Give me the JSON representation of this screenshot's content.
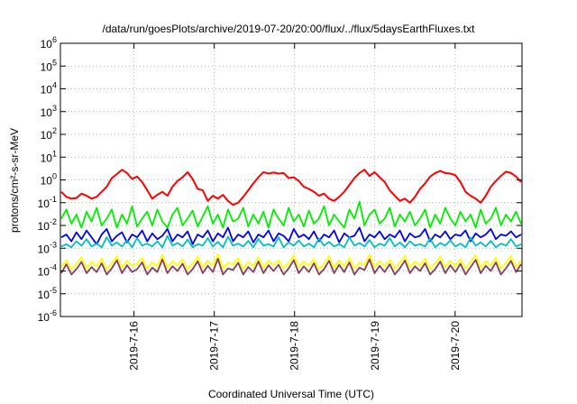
{
  "chart_data": {
    "type": "line",
    "title": "/data/run/goesPlots/archive/2019-07-20/20:00/flux/../flux/5daysEarthFluxes.txt",
    "xlabel": "Coordinated Universal Time (UTC)",
    "ylabel": "protons/cm²-s-sr-MeV",
    "x_unit": "days",
    "x_range": [
      "2019-07-15T02:00",
      "2019-07-20T20:00"
    ],
    "x_ticks": [
      "2019-7-16",
      "2019-7-17",
      "2019-7-18",
      "2019-7-19",
      "2019-7-20"
    ],
    "yscale": "log",
    "ylim": [
      1e-06,
      1000000.0
    ],
    "y_ticks": [
      {
        "base": "10",
        "exp": "6"
      },
      {
        "base": "10",
        "exp": "5"
      },
      {
        "base": "10",
        "exp": "4"
      },
      {
        "base": "10",
        "exp": "3"
      },
      {
        "base": "10",
        "exp": "2"
      },
      {
        "base": "10",
        "exp": "1"
      },
      {
        "base": "10",
        "exp": "0"
      },
      {
        "base": "10",
        "exp": "-1"
      },
      {
        "base": "10",
        "exp": "-2"
      },
      {
        "base": "10",
        "exp": "-3"
      },
      {
        "base": "10",
        "exp": "-4"
      },
      {
        "base": "10",
        "exp": "-5"
      },
      {
        "base": "10",
        "exp": "-6"
      }
    ],
    "grid": true,
    "series": [
      {
        "color": "#ff0000",
        "values": [
          0.3,
          0.18,
          0.15,
          0.16,
          0.25,
          0.2,
          0.15,
          0.18,
          0.3,
          0.5,
          1.2,
          1.8,
          2.8,
          2.0,
          1.1,
          1.4,
          0.8,
          0.35,
          0.15,
          0.22,
          0.3,
          0.2,
          0.5,
          0.9,
          1.3,
          2.2,
          1.1,
          0.4,
          0.35,
          0.12,
          0.2,
          0.15,
          0.22,
          0.12,
          0.08,
          0.1,
          0.18,
          0.35,
          0.7,
          1.3,
          2.2,
          1.9,
          2.1,
          1.9,
          2.0,
          1.2,
          1.3,
          0.9,
          0.5,
          0.4,
          0.3,
          0.2,
          0.25,
          0.15,
          0.12,
          0.18,
          0.3,
          0.6,
          1.2,
          2.0,
          2.8,
          1.5,
          2.2,
          1.3,
          0.8,
          0.35,
          0.2,
          0.12,
          0.15,
          0.1,
          0.18,
          0.4,
          0.7,
          1.4,
          2.0,
          2.5,
          2.0,
          1.9,
          1.6,
          0.8,
          0.3,
          0.2,
          0.15,
          0.1,
          0.2,
          0.5,
          0.9,
          1.5,
          2.3,
          2.0,
          1.4,
          0.8
        ]
      },
      {
        "color": "#00ee00",
        "values": [
          0.02,
          0.05,
          0.012,
          0.03,
          0.008,
          0.04,
          0.015,
          0.06,
          0.01,
          0.02,
          0.05,
          0.008,
          0.03,
          0.012,
          0.07,
          0.009,
          0.02,
          0.04,
          0.01,
          0.05,
          0.015,
          0.008,
          0.03,
          0.06,
          0.01,
          0.02,
          0.045,
          0.009,
          0.025,
          0.07,
          0.012,
          0.03,
          0.008,
          0.05,
          0.015,
          0.02,
          0.06,
          0.009,
          0.03,
          0.012,
          0.04,
          0.008,
          0.05,
          0.02,
          0.01,
          0.06,
          0.015,
          0.03,
          0.009,
          0.045,
          0.012,
          0.02,
          0.07,
          0.01,
          0.03,
          0.015,
          0.008,
          0.05,
          0.02,
          0.11,
          0.01,
          0.03,
          0.05,
          0.012,
          0.02,
          0.06,
          0.009,
          0.03,
          0.015,
          0.04,
          0.01,
          0.02,
          0.05,
          0.008,
          0.03,
          0.012,
          0.06,
          0.02,
          0.01,
          0.04,
          0.015,
          0.03,
          0.008,
          0.05,
          0.012,
          0.02,
          0.06,
          0.01,
          0.03,
          0.015,
          0.04,
          0.012
        ]
      },
      {
        "color": "#0000ee",
        "values": [
          0.003,
          0.004,
          0.002,
          0.005,
          0.0025,
          0.006,
          0.003,
          0.0015,
          0.004,
          0.007,
          0.002,
          0.0035,
          0.005,
          0.0018,
          0.004,
          0.003,
          0.006,
          0.002,
          0.0045,
          0.0025,
          0.0035,
          0.007,
          0.002,
          0.004,
          0.003,
          0.0055,
          0.0015,
          0.004,
          0.003,
          0.006,
          0.002,
          0.0045,
          0.003,
          0.008,
          0.002,
          0.004,
          0.003,
          0.0055,
          0.0018,
          0.004,
          0.003,
          0.006,
          0.002,
          0.0045,
          0.0035,
          0.002,
          0.007,
          0.003,
          0.004,
          0.0025,
          0.0055,
          0.002,
          0.004,
          0.003,
          0.006,
          0.0018,
          0.0045,
          0.003,
          0.0035,
          0.008,
          0.002,
          0.004,
          0.003,
          0.0055,
          0.0025,
          0.004,
          0.003,
          0.006,
          0.002,
          0.0045,
          0.003,
          0.0035,
          0.007,
          0.002,
          0.004,
          0.003,
          0.0055,
          0.0025,
          0.004,
          0.0035,
          0.006,
          0.002,
          0.0045,
          0.003,
          0.004,
          0.007,
          0.0025,
          0.004,
          0.0035,
          0.0055,
          0.003,
          0.004
        ]
      },
      {
        "color": "#00c0c0",
        "values": [
          0.0012,
          0.0015,
          0.0011,
          0.002,
          0.0013,
          0.0025,
          0.0012,
          0.0016,
          0.0011,
          0.003,
          0.0013,
          0.0018,
          0.0012,
          0.0022,
          0.0011,
          0.0028,
          0.0013,
          0.0016,
          0.0012,
          0.002,
          0.0011,
          0.0035,
          0.0013,
          0.0017,
          0.0012,
          0.0024,
          0.0011,
          0.0015,
          0.0013,
          0.0028,
          0.0012,
          0.0019,
          0.0011,
          0.0032,
          0.0013,
          0.0016,
          0.0012,
          0.0021,
          0.0011,
          0.0026,
          0.0013,
          0.0015,
          0.0012,
          0.003,
          0.0011,
          0.0018,
          0.0013,
          0.0022,
          0.0012,
          0.0016,
          0.0011,
          0.0027,
          0.0013,
          0.0019,
          0.0012,
          0.0015,
          0.0011,
          0.003,
          0.0013,
          0.0017,
          0.0012,
          0.0023,
          0.0011,
          0.0016,
          0.0013,
          0.0028,
          0.0012,
          0.0018,
          0.0011,
          0.002,
          0.0013,
          0.0015,
          0.0012,
          0.0026,
          0.0011,
          0.0017,
          0.0013,
          0.0022,
          0.0012,
          0.0016,
          0.0011,
          0.0029,
          0.0013,
          0.0018,
          0.0012,
          0.0021,
          0.0011,
          0.0016,
          0.0013,
          0.0025,
          0.0012,
          0.0015
        ]
      },
      {
        "color": "#ffff00",
        "values": [
          0.00015,
          0.0003,
          0.00012,
          0.0002,
          0.0004,
          0.00013,
          0.00025,
          0.00016,
          0.00035,
          0.00012,
          0.00022,
          0.00045,
          0.00014,
          0.00028,
          0.00017,
          0.0002,
          0.00038,
          0.00013,
          0.00024,
          0.00016,
          0.0005,
          0.00014,
          0.00026,
          0.00018,
          0.00033,
          0.00012,
          0.00021,
          0.00042,
          0.00015,
          0.00027,
          0.00017,
          0.00055,
          0.00013,
          0.00023,
          0.00019,
          0.00036,
          0.00012,
          0.00025,
          0.00016,
          0.0004,
          0.00014,
          0.00028,
          0.00018,
          0.0003,
          0.00013,
          0.00022,
          0.00048,
          0.00015,
          0.00026,
          0.00017,
          0.00034,
          0.00012,
          0.00021,
          0.00044,
          0.00014,
          0.00029,
          0.00016,
          0.00037,
          0.00013,
          0.00024,
          0.00018,
          0.00052,
          0.00015,
          0.00027,
          0.00016,
          0.00031,
          0.00013,
          0.00023,
          0.00046,
          0.00014,
          0.00026,
          0.00017,
          0.00035,
          0.00012,
          0.00022,
          0.00041,
          0.00015,
          0.00028,
          0.00016,
          0.00033,
          0.00013,
          0.00025,
          0.00049,
          0.00014,
          0.00027,
          0.00017,
          0.00038,
          0.00013,
          0.00023,
          0.00045,
          0.00015,
          0.0003
        ]
      },
      {
        "color": "#8b3a62",
        "values": [
          8e-05,
          0.0002,
          7e-05,
          0.00012,
          0.00025,
          8e-05,
          0.00015,
          9e-05,
          0.00022,
          7e-05,
          0.00013,
          0.0003,
          8e-05,
          0.00018,
          9e-05,
          0.00012,
          0.00024,
          7e-05,
          0.00014,
          9e-05,
          0.00032,
          8e-05,
          0.00016,
          0.0001,
          0.00021,
          7e-05,
          0.00012,
          0.00027,
          8e-05,
          0.00017,
          9e-05,
          0.00035,
          7e-05,
          0.00013,
          0.00011,
          0.00023,
          7e-05,
          0.00015,
          9e-05,
          0.00026,
          8e-05,
          0.00018,
          0.0001,
          0.00019,
          7e-05,
          0.00013,
          0.0003,
          8e-05,
          0.00016,
          9e-05,
          0.00022,
          7e-05,
          0.00012,
          0.00028,
          8e-05,
          0.00019,
          9e-05,
          0.00024,
          7e-05,
          0.00014,
          0.00011,
          0.00033,
          8e-05,
          0.00017,
          9e-05,
          0.0002,
          7e-05,
          0.00013,
          0.00029,
          8e-05,
          0.00016,
          0.0001,
          0.00022,
          7e-05,
          0.00012,
          0.00026,
          8e-05,
          0.00018,
          9e-05,
          0.00021,
          7e-05,
          0.00015,
          0.00031,
          8e-05,
          0.00017,
          0.0001,
          0.00024,
          7e-05,
          0.00013,
          0.00028,
          9e-05,
          0.0002
        ]
      }
    ]
  }
}
